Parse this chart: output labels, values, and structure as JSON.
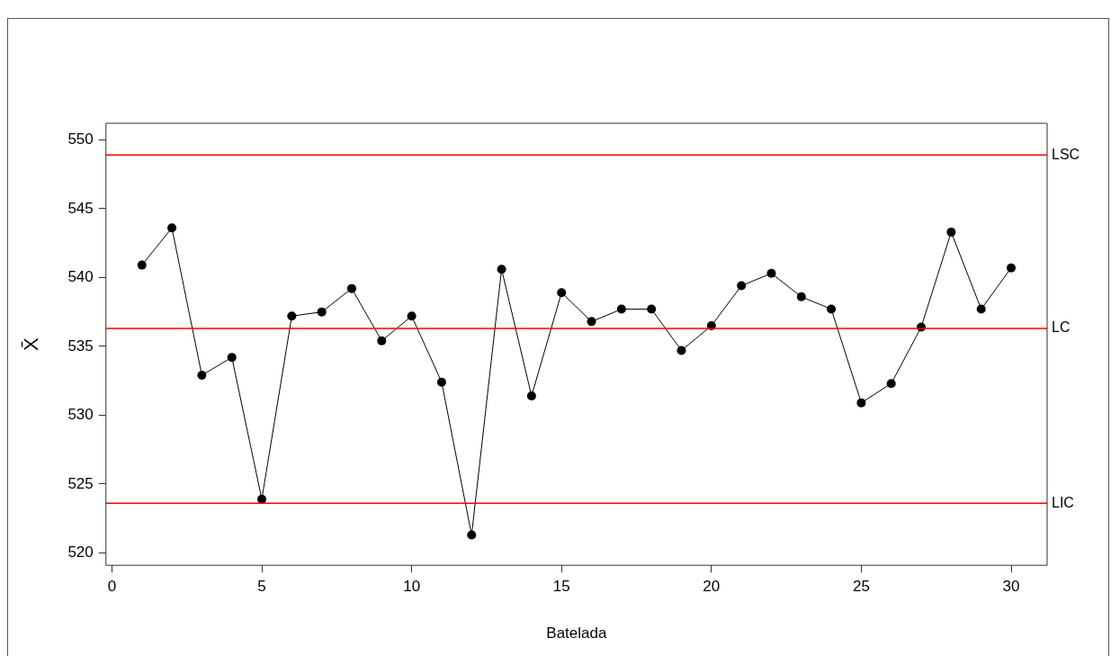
{
  "chart_data": {
    "type": "line",
    "xlabel": "Batelada",
    "ylabel": "X̄",
    "x": [
      1,
      2,
      3,
      4,
      5,
      6,
      7,
      8,
      9,
      10,
      11,
      12,
      13,
      14,
      15,
      16,
      17,
      18,
      19,
      20,
      21,
      22,
      23,
      24,
      25,
      26,
      27,
      28,
      29,
      30
    ],
    "series": [
      {
        "color": "#000000",
        "values": [
          540.9,
          543.6,
          532.9,
          534.2,
          523.9,
          537.2,
          537.5,
          539.2,
          535.4,
          537.2,
          532.4,
          521.3,
          540.6,
          531.4,
          538.9,
          536.8,
          537.7,
          537.7,
          534.7,
          536.5,
          539.4,
          540.3,
          538.6,
          537.7,
          530.9,
          532.3,
          536.4,
          543.3,
          537.7,
          540.7
        ]
      }
    ],
    "xlim": [
      -0.2,
      31.2
    ],
    "xticks": [
      0,
      5,
      10,
      15,
      20,
      25,
      30
    ],
    "ylim": [
      519.1,
      551.2
    ],
    "yticks": [
      520,
      525,
      530,
      535,
      540,
      545,
      550
    ],
    "ref_lines": [
      {
        "axis": "y",
        "value": 548.9,
        "label": "LSC",
        "color": "#ff0000"
      },
      {
        "axis": "y",
        "value": 536.3,
        "label": "LC",
        "color": "#ff0000"
      },
      {
        "axis": "y",
        "value": 523.6,
        "label": "LIC",
        "color": "#ff0000"
      }
    ],
    "grid": false,
    "legend": false,
    "marker": "circle",
    "line_style": "solid"
  }
}
